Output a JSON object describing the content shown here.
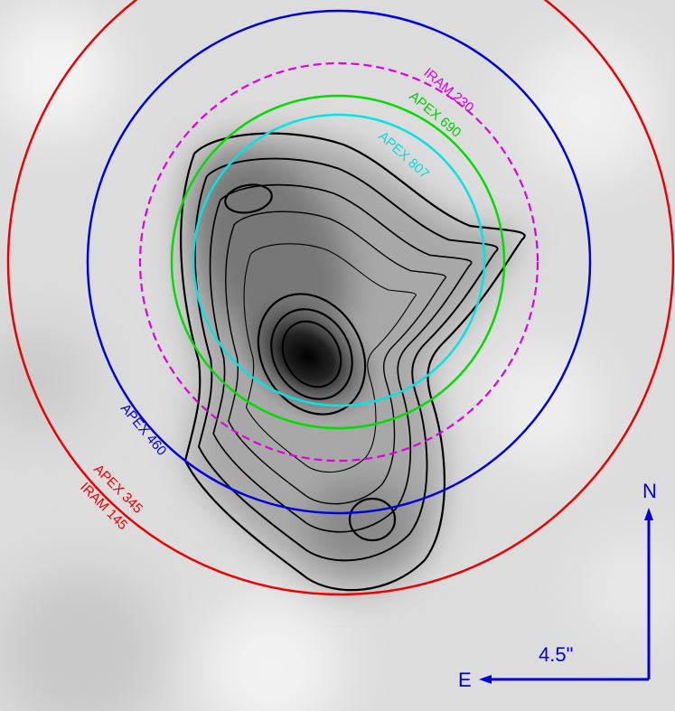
{
  "beams": [
    {
      "label": "IRAM 230"
    },
    {
      "label": "APEX 690"
    },
    {
      "label": "APEX 807"
    },
    {
      "label": "APEX 460"
    },
    {
      "label": "APEX 345"
    },
    {
      "label": "IRAM 145"
    }
  ],
  "compass": {
    "north": "N",
    "east": "E",
    "scale": "4.5\""
  }
}
